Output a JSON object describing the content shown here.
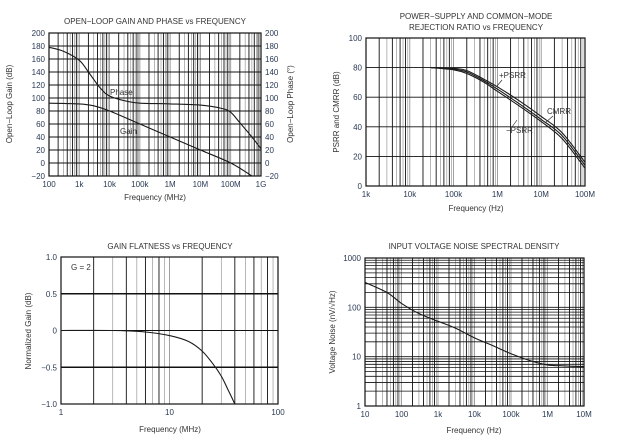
{
  "chart_data": [
    {
      "type": "line",
      "title": "OPEN−LOOP GAIN AND PHASE vs FREQUENCY",
      "xlabel": "Frequency (MHz)",
      "ylabel": "Open−Loop Gain (dB)",
      "ylabel_right": "Open−Loop Phase (°)",
      "xscale": "log",
      "xlim": [
        100,
        1000000000
      ],
      "ylim": [
        -20,
        200
      ],
      "xticks": [
        100,
        1000,
        10000,
        100000,
        1000000,
        10000000,
        100000000,
        1000000000
      ],
      "xtick_labels": [
        "100",
        "1k",
        "10k",
        "100k",
        "1M",
        "10M",
        "100M",
        "1G"
      ],
      "yticks": [
        -20,
        0,
        20,
        40,
        60,
        80,
        100,
        120,
        140,
        160,
        180,
        200
      ],
      "ytick_labels": [
        "−20",
        "0",
        "20",
        "40",
        "60",
        "80",
        "100",
        "120",
        "140",
        "160",
        "180",
        "200"
      ],
      "ytick_labels_right": [
        "−20",
        "0",
        "20",
        "40",
        "60",
        "80",
        "100",
        "120",
        "140",
        "160",
        "180",
        "200"
      ],
      "grid": true,
      "annotations": [
        "Phase",
        "Gain"
      ],
      "series": [
        {
          "name": "Phase",
          "x": [
            100,
            300,
            1000,
            2000,
            5000,
            10000,
            30000,
            100000,
            1000000,
            10000000,
            50000000,
            100000000,
            200000000,
            500000000,
            1000000000
          ],
          "values": [
            178,
            172,
            158,
            140,
            115,
            103,
            96,
            92,
            91,
            89,
            84,
            78,
            62,
            40,
            22
          ]
        },
        {
          "name": "Gain",
          "x": [
            100,
            1000,
            3000,
            10000,
            100000,
            1000000,
            10000000,
            100000000,
            500000000
          ],
          "values": [
            92,
            91,
            88,
            80,
            60,
            40,
            20,
            0,
            -20
          ]
        }
      ]
    },
    {
      "type": "line",
      "title": "POWER−SUPPLY AND COMMON−MODE",
      "subtitle": "REJECTION RATIO vs FREQUENCY",
      "xlabel": "Frequency (Hz)",
      "ylabel": "PSRR and CMRR (dB)",
      "xscale": "log",
      "xlim": [
        1000,
        100000000
      ],
      "ylim": [
        0,
        100
      ],
      "xticks": [
        1000,
        10000,
        100000,
        1000000,
        10000000,
        100000000
      ],
      "xtick_labels": [
        "1k",
        "10k",
        "100k",
        "1M",
        "10M",
        "100M"
      ],
      "yticks": [
        0,
        20,
        40,
        60,
        80,
        100
      ],
      "ytick_labels": [
        "0",
        "20",
        "40",
        "60",
        "80",
        "100"
      ],
      "grid": true,
      "series": [
        {
          "name": "+PSRR",
          "x": [
            30000,
            100000,
            200000,
            500000,
            1000000,
            3000000,
            10000000,
            30000000,
            100000000
          ],
          "values": [
            80,
            79.5,
            78,
            72,
            67,
            58,
            47,
            36,
            16
          ]
        },
        {
          "name": "CMRR",
          "x": [
            30000,
            100000,
            200000,
            500000,
            1000000,
            3000000,
            10000000,
            30000000,
            100000000
          ],
          "values": [
            80,
            79,
            77,
            71,
            65.5,
            56,
            45,
            34,
            14
          ]
        },
        {
          "name": "−PSRR",
          "x": [
            30000,
            100000,
            200000,
            500000,
            1000000,
            3000000,
            10000000,
            30000000,
            100000000
          ],
          "values": [
            80,
            78.5,
            76,
            70,
            64,
            54.5,
            43.5,
            32,
            12
          ]
        }
      ]
    },
    {
      "type": "line",
      "title": "GAIN FLATNESS vs FREQUENCY",
      "xlabel": "Frequency (MHz)",
      "ylabel": "Normalized Gain (dB)",
      "xscale": "log",
      "xlim": [
        1,
        100
      ],
      "ylim": [
        -1.0,
        1.0
      ],
      "xticks": [
        1,
        10,
        100
      ],
      "xtick_labels": [
        "1",
        "10",
        "100"
      ],
      "yticks": [
        -1.0,
        -0.5,
        0,
        0.5,
        1.0
      ],
      "ytick_labels": [
        "−1.0",
        "−0.5",
        "0",
        "0.5",
        "1.0"
      ],
      "grid": true,
      "annotations": [
        "G = 2"
      ],
      "series": [
        {
          "name": "G = 2",
          "x": [
            1,
            3,
            6,
            10,
            15,
            20,
            25,
            30,
            35,
            40
          ],
          "values": [
            0,
            0,
            -0.02,
            -0.07,
            -0.15,
            -0.28,
            -0.45,
            -0.62,
            -0.82,
            -1.0
          ]
        }
      ]
    },
    {
      "type": "line",
      "title": "INPUT VOLTAGE NOISE SPECTRAL DENSITY",
      "xlabel": "Frequency (Hz)",
      "ylabel": "Voltage Noise (nV/√Hz)",
      "xscale": "log",
      "yscale": "log",
      "xlim": [
        10,
        10000000
      ],
      "ylim": [
        1,
        1000
      ],
      "xticks": [
        10,
        100,
        1000,
        10000,
        100000,
        1000000,
        10000000
      ],
      "xtick_labels": [
        "10",
        "100",
        "1k",
        "10k",
        "100k",
        "1M",
        "10M"
      ],
      "yticks": [
        1,
        10,
        100,
        1000
      ],
      "ytick_labels": [
        "1",
        "10",
        "100",
        "1000"
      ],
      "grid": true,
      "series": [
        {
          "name": "Voltage Noise",
          "x": [
            10,
            40,
            100,
            300,
            1000,
            3000,
            10000,
            30000,
            100000,
            300000,
            1000000,
            3000000,
            10000000
          ],
          "values": [
            320,
            200,
            120,
            75,
            52,
            38,
            24,
            17,
            11.5,
            8.5,
            6.8,
            6.5,
            6.3
          ]
        }
      ]
    }
  ],
  "colors": {
    "curve": "#1a1a1a",
    "grid_major": "#111111",
    "grid_minor": "#888888",
    "tick_text": "#2b3a55",
    "label_text": "#333333"
  }
}
